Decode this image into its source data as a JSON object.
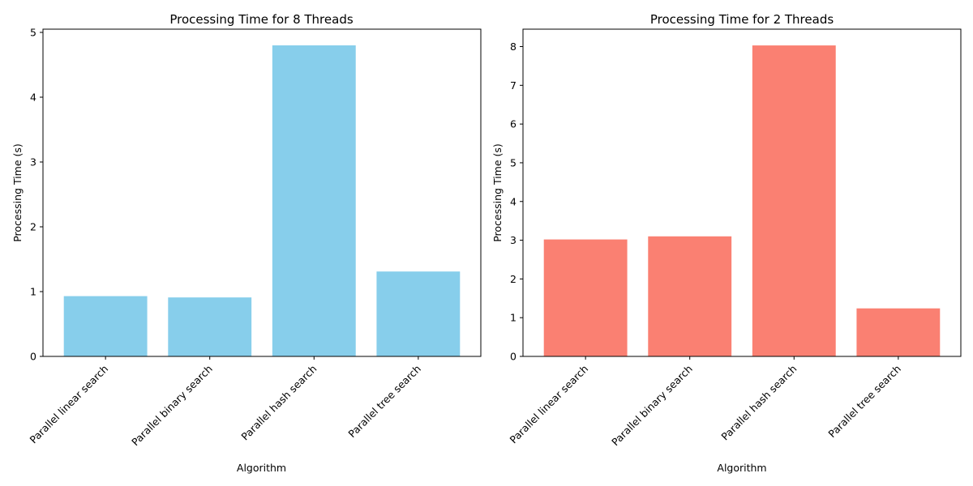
{
  "chart_data": [
    {
      "type": "bar",
      "title": "Processing Time for 8 Threads",
      "xlabel": "Algorithm",
      "ylabel": "Processing Time (s)",
      "categories": [
        "Parallel linear search",
        "Parallel binary search",
        "Parallel hash search",
        "Parallel tree search"
      ],
      "values": [
        0.93,
        0.91,
        4.8,
        1.31
      ],
      "ylim": [
        0,
        5.05
      ],
      "yticks": [
        0,
        1,
        2,
        3,
        4,
        5
      ],
      "color": "#87ceeb",
      "grid": false
    },
    {
      "type": "bar",
      "title": "Processing Time for 2 Threads",
      "xlabel": "Algorithm",
      "ylabel": "Processing Time (s)",
      "categories": [
        "Parallel linear search",
        "Parallel binary search",
        "Parallel hash search",
        "Parallel tree search"
      ],
      "values": [
        3.02,
        3.1,
        8.03,
        1.24
      ],
      "ylim": [
        0,
        8.45
      ],
      "yticks": [
        0,
        1,
        2,
        3,
        4,
        5,
        6,
        7,
        8
      ],
      "color": "#fa8072",
      "grid": false
    }
  ]
}
